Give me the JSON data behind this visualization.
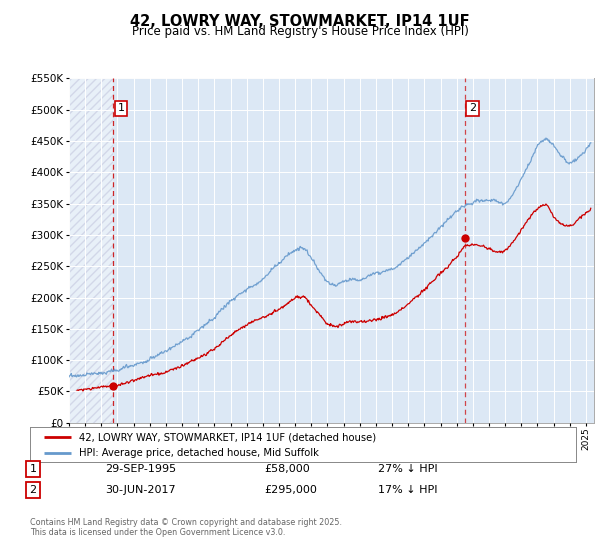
{
  "title": "42, LOWRY WAY, STOWMARKET, IP14 1UF",
  "subtitle": "Price paid vs. HM Land Registry's House Price Index (HPI)",
  "legend_line1": "42, LOWRY WAY, STOWMARKET, IP14 1UF (detached house)",
  "legend_line2": "HPI: Average price, detached house, Mid Suffolk",
  "annotation1_label": "1",
  "annotation1_date": "29-SEP-1995",
  "annotation1_price": "£58,000",
  "annotation1_hpi": "27% ↓ HPI",
  "annotation2_label": "2",
  "annotation2_date": "30-JUN-2017",
  "annotation2_price": "£295,000",
  "annotation2_hpi": "17% ↓ HPI",
  "footer": "Contains HM Land Registry data © Crown copyright and database right 2025.\nThis data is licensed under the Open Government Licence v3.0.",
  "red_color": "#cc0000",
  "blue_color": "#6699cc",
  "background_color": "#dce8f5",
  "ylim": [
    0,
    550000
  ],
  "xlim_start": 1993.0,
  "xlim_end": 2025.5,
  "sale1_x": 1995.75,
  "sale1_y": 58000,
  "sale2_x": 2017.5,
  "sale2_y": 295000,
  "hpi_keypoints_x": [
    1993.0,
    1994.0,
    1995.0,
    1996.0,
    1997.0,
    1998.0,
    1999.0,
    2000.0,
    2001.0,
    2002.0,
    2003.0,
    2004.0,
    2005.0,
    2006.0,
    2007.0,
    2007.5,
    2008.0,
    2008.5,
    2009.0,
    2009.5,
    2010.0,
    2010.5,
    2011.0,
    2011.5,
    2012.0,
    2012.5,
    2013.0,
    2013.5,
    2014.0,
    2014.5,
    2015.0,
    2015.5,
    2016.0,
    2016.5,
    2017.0,
    2017.5,
    2018.0,
    2018.5,
    2019.0,
    2019.5,
    2020.0,
    2020.5,
    2021.0,
    2021.5,
    2022.0,
    2022.5,
    2023.0,
    2023.5,
    2024.0,
    2024.5,
    2025.0,
    2025.3
  ],
  "hpi_keypoints_y": [
    75000,
    78000,
    80000,
    85000,
    92000,
    100000,
    112000,
    128000,
    145000,
    168000,
    195000,
    215000,
    230000,
    255000,
    275000,
    280000,
    265000,
    245000,
    228000,
    222000,
    228000,
    232000,
    230000,
    235000,
    240000,
    245000,
    252000,
    262000,
    272000,
    283000,
    295000,
    308000,
    320000,
    333000,
    346000,
    355000,
    360000,
    362000,
    360000,
    358000,
    355000,
    368000,
    390000,
    415000,
    440000,
    450000,
    440000,
    425000,
    415000,
    420000,
    435000,
    445000
  ],
  "red_keypoints_x": [
    1993.5,
    1994.0,
    1995.0,
    1995.75,
    1996.0,
    1997.0,
    1998.0,
    1999.0,
    2000.0,
    2001.0,
    2002.0,
    2003.0,
    2004.0,
    2005.0,
    2006.0,
    2007.0,
    2007.5,
    2008.0,
    2008.5,
    2009.0,
    2009.5,
    2010.0,
    2010.5,
    2011.0,
    2011.5,
    2012.0,
    2012.5,
    2013.0,
    2013.5,
    2014.0,
    2014.5,
    2015.0,
    2015.5,
    2016.0,
    2016.5,
    2017.0,
    2017.5,
    2018.0,
    2018.5,
    2019.0,
    2019.5,
    2020.0,
    2020.5,
    2021.0,
    2021.5,
    2022.0,
    2022.5,
    2023.0,
    2023.5,
    2024.0,
    2024.5,
    2025.0,
    2025.3
  ],
  "red_keypoints_y": [
    52000,
    54000,
    57000,
    58000,
    60000,
    65000,
    72000,
    80000,
    90000,
    102000,
    118000,
    138000,
    155000,
    168000,
    182000,
    200000,
    205000,
    192000,
    178000,
    162000,
    158000,
    163000,
    168000,
    165000,
    168000,
    170000,
    175000,
    180000,
    188000,
    198000,
    210000,
    222000,
    235000,
    248000,
    262000,
    278000,
    295000,
    300000,
    298000,
    295000,
    290000,
    292000,
    305000,
    325000,
    345000,
    360000,
    365000,
    348000,
    335000,
    330000,
    340000,
    350000,
    355000
  ]
}
